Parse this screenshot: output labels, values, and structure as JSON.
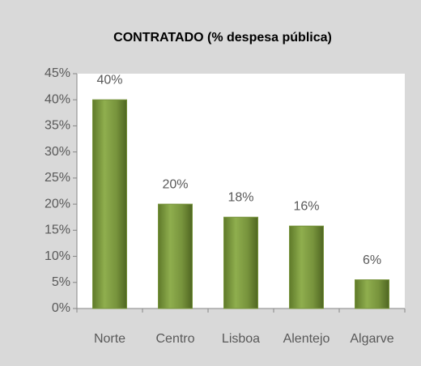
{
  "chart_data": {
    "type": "bar",
    "title": "CONTRATADO  (% despesa pública)",
    "categories": [
      "Norte",
      "Centro",
      "Lisboa",
      "Alentejo",
      "Algarve"
    ],
    "values": [
      40,
      20,
      17.5,
      15.8,
      5.5
    ],
    "value_labels": [
      "40%",
      "20%",
      "18%",
      "16%",
      "6%"
    ],
    "color": "#77933c",
    "ylim": [
      0,
      45
    ],
    "yticks": [
      {
        "value": 0,
        "label": "0%"
      },
      {
        "value": 5,
        "label": "5%"
      },
      {
        "value": 10,
        "label": "10%"
      },
      {
        "value": 15,
        "label": "15%"
      },
      {
        "value": 20,
        "label": "20%"
      },
      {
        "value": 25,
        "label": "25%"
      },
      {
        "value": 30,
        "label": "30%"
      },
      {
        "value": 35,
        "label": "35%"
      },
      {
        "value": 40,
        "label": "40%"
      },
      {
        "value": 45,
        "label": "45%"
      }
    ],
    "grid": false
  }
}
